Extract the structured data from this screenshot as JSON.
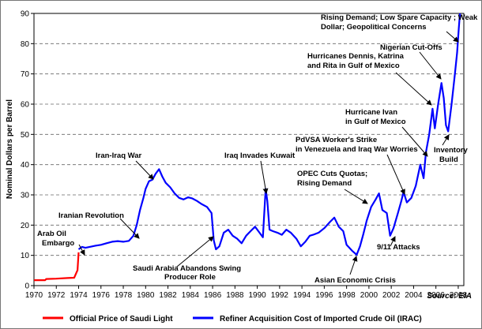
{
  "chart_data": {
    "type": "line",
    "ylabel": "Nominal Dollars per Barrel",
    "xlabel": "",
    "xlim": [
      1970,
      2008.5
    ],
    "ylim": [
      0,
      90
    ],
    "x_ticks": [
      1970,
      1972,
      1974,
      1976,
      1978,
      1980,
      1982,
      1984,
      1986,
      1988,
      1990,
      1992,
      1994,
      1996,
      1998,
      2000,
      2002,
      2004,
      2006,
      2008
    ],
    "y_ticks": [
      0,
      10,
      20,
      30,
      40,
      50,
      60,
      70,
      80,
      90
    ],
    "grid": "horizontal dashed",
    "legend_position": "bottom",
    "source": "Source: EIA",
    "series": [
      {
        "name": "Official Price of Saudi Light",
        "color": "#ff0000",
        "x": [
          1970.0,
          1971.0,
          1971.1,
          1972.0,
          1973.0,
          1973.6,
          1973.9,
          1974.0
        ],
        "y": [
          1.8,
          1.8,
          2.2,
          2.3,
          2.5,
          2.6,
          5.1,
          11.0
        ]
      },
      {
        "name": "Refiner Acquisition Cost of Imported Crude Oil (IRAC)",
        "color": "#0000ff",
        "x": [
          1974.0,
          1974.3,
          1974.6,
          1975.0,
          1975.5,
          1976.0,
          1976.5,
          1977.0,
          1977.5,
          1978.0,
          1978.5,
          1978.9,
          1979.2,
          1979.5,
          1979.8,
          1980.0,
          1980.3,
          1980.6,
          1980.9,
          1981.2,
          1981.5,
          1981.8,
          1982.2,
          1982.6,
          1983.0,
          1983.4,
          1983.8,
          1984.2,
          1984.6,
          1985.0,
          1985.5,
          1985.9,
          1986.1,
          1986.3,
          1986.6,
          1987.0,
          1987.4,
          1987.8,
          1988.2,
          1988.6,
          1989.0,
          1989.4,
          1989.8,
          1990.2,
          1990.5,
          1990.75,
          1990.9,
          1991.1,
          1991.4,
          1991.8,
          1992.2,
          1992.6,
          1993.0,
          1993.5,
          1993.9,
          1994.3,
          1994.7,
          1995.0,
          1995.5,
          1996.0,
          1996.5,
          1996.9,
          1997.3,
          1997.7,
          1998.0,
          1998.5,
          1998.9,
          1999.2,
          1999.5,
          1999.8,
          2000.2,
          2000.6,
          2000.9,
          2001.2,
          2001.6,
          2001.9,
          2002.2,
          2002.6,
          2002.9,
          2003.1,
          2003.4,
          2003.8,
          2004.2,
          2004.6,
          2004.9,
          2005.1,
          2005.4,
          2005.7,
          2005.9,
          2006.2,
          2006.5,
          2006.7,
          2006.9,
          2007.1,
          2007.4,
          2007.7,
          2007.9,
          2008.05,
          2008.15
        ],
        "y": [
          12.0,
          12.8,
          12.5,
          12.8,
          13.2,
          13.5,
          14.0,
          14.5,
          14.7,
          14.5,
          14.8,
          16.5,
          20.0,
          25.0,
          29.0,
          32.0,
          34.5,
          35.0,
          37.0,
          38.5,
          36.0,
          34.0,
          32.5,
          30.5,
          29.0,
          28.5,
          29.2,
          28.8,
          28.0,
          27.0,
          26.0,
          24.0,
          15.0,
          12.0,
          13.0,
          17.5,
          18.5,
          16.5,
          15.5,
          14.0,
          16.5,
          18.0,
          19.5,
          17.5,
          16.0,
          32.0,
          28.0,
          18.5,
          18.0,
          17.5,
          16.8,
          18.5,
          17.5,
          15.5,
          13.0,
          14.5,
          16.5,
          16.8,
          17.5,
          19.0,
          21.0,
          22.5,
          19.5,
          18.0,
          13.5,
          11.5,
          10.2,
          13.0,
          17.0,
          21.5,
          26.0,
          28.5,
          30.5,
          25.0,
          24.0,
          16.5,
          19.0,
          24.0,
          28.0,
          31.0,
          27.5,
          29.0,
          33.0,
          40.0,
          35.5,
          44.0,
          50.0,
          58.5,
          52.0,
          60.0,
          67.0,
          62.0,
          53.0,
          51.0,
          60.0,
          70.0,
          77.0,
          85.0,
          90.0
        ]
      }
    ],
    "annotations": [
      "Arab Oil",
      "Embargo",
      "Iranian Revolution",
      "Iran-Iraq War",
      "Saudi Arabia Abandons Swing",
      "Producer Role",
      "Iraq Invades Kuwait",
      "Asian Economic Crisis",
      "OPEC Cuts Quotas;",
      "Rising Demand",
      "9/11 Attacks",
      "PdVSA Worker's Strike",
      "in Venezuela and Iraq War Worries",
      "Hurricane Ivan",
      "in Gulf of Mexico",
      "Hurricanes Dennis, Katrina",
      "and Rita in Gulf of Mexico",
      "Nigerian Cut-Offs",
      "Inventory",
      "Build",
      "Rising Demand; Low Spare Capacity ; Weak",
      "Dollar; Geopolitical Concerns"
    ]
  }
}
